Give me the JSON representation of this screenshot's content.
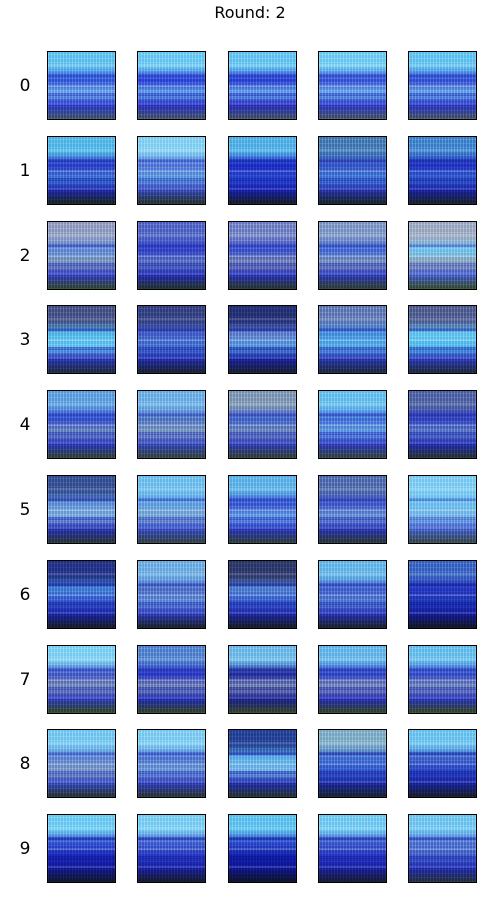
{
  "title": "Round: 2",
  "rows": [
    {
      "label": "0",
      "tiles": [
        {
          "top": "#6ec6ef",
          "mid": "#3a5fd8",
          "low": "#7fb9e6",
          "ground": "#4a5e6a",
          "accent": "#2e3fd0"
        },
        {
          "top": "#78cdf2",
          "mid": "#3348d4",
          "low": "#6fb2e6",
          "ground": "#4e5f6b",
          "accent": "#2b34c8"
        },
        {
          "top": "#72c9f0",
          "mid": "#2f45d0",
          "low": "#74b6e8",
          "ground": "#4c5d66",
          "accent": "#2a30c4"
        },
        {
          "top": "#7dd0f3",
          "mid": "#3f5ad4",
          "low": "#79bce8",
          "ground": "#50606a",
          "accent": "#2f3ccc"
        },
        {
          "top": "#70c8ef",
          "mid": "#3c56d2",
          "low": "#78b8e6",
          "ground": "#4f5f69",
          "accent": "#2c3aca"
        }
      ]
    },
    {
      "label": "1",
      "tiles": [
        {
          "top": "#5fbde8",
          "mid": "#2f42c8",
          "low": "#4a86d6",
          "ground": "#1e2a22",
          "accent": "#1f2cb0"
        },
        {
          "top": "#8fd4f2",
          "mid": "#5d7fd8",
          "low": "#6aa7e0",
          "ground": "#2c3a30",
          "accent": "#3b50c0"
        },
        {
          "top": "#5cb6e6",
          "mid": "#1f2ec4",
          "low": "#2f52cc",
          "ground": "#1a2226",
          "accent": "#1622b0"
        },
        {
          "top": "#4e86b8",
          "mid": "#3c5cc8",
          "low": "#4a8ad8",
          "ground": "#1d2a2a",
          "accent": "#2a36b4"
        },
        {
          "top": "#4a8fcf",
          "mid": "#2436c0",
          "low": "#3a6cd0",
          "ground": "#1c2628",
          "accent": "#1a24a8"
        }
      ]
    },
    {
      "label": "2",
      "tiles": [
        {
          "top": "#9aa6c4",
          "mid": "#6a94d8",
          "low": "#8aa0b8",
          "ground": "#3a4e30",
          "accent": "#3444c4"
        },
        {
          "top": "#5b70c6",
          "mid": "#3848c8",
          "low": "#6a86c0",
          "ground": "#283a2c",
          "accent": "#2630b8"
        },
        {
          "top": "#7e8cc6",
          "mid": "#4058cc",
          "low": "#8a96b4",
          "ground": "#2e3c2c",
          "accent": "#2c38bc"
        },
        {
          "top": "#8aa0c8",
          "mid": "#4a72d4",
          "low": "#8da2ba",
          "ground": "#34462e",
          "accent": "#3040c0"
        },
        {
          "top": "#a6b2c4",
          "mid": "#7ac8ef",
          "low": "#9aa8b6",
          "ground": "#3e5430",
          "accent": "#4a66d0"
        }
      ]
    },
    {
      "label": "3",
      "tiles": [
        {
          "top": "#4e5c8a",
          "mid": "#5dbfe8",
          "low": "#6ec8ee",
          "ground": "#243040",
          "accent": "#2c3cb8"
        },
        {
          "top": "#3c4a86",
          "mid": "#4a68c8",
          "low": "#4c7fd0",
          "ground": "#1e2630",
          "accent": "#2430b0"
        },
        {
          "top": "#2a3678",
          "mid": "#6a8ad0",
          "low": "#5ea2dc",
          "ground": "#1c2430",
          "accent": "#1a24a4"
        },
        {
          "top": "#6e86b8",
          "mid": "#4d9ae0",
          "low": "#62b4e6",
          "ground": "#223040",
          "accent": "#2b3ab4"
        },
        {
          "top": "#5a6894",
          "mid": "#6ccbf0",
          "low": "#5dbde8",
          "ground": "#23303c",
          "accent": "#2e3fbc"
        }
      ]
    },
    {
      "label": "4",
      "tiles": [
        {
          "top": "#6aa8e0",
          "mid": "#3a56cc",
          "low": "#7a98c0",
          "ground": "#3a4a3a",
          "accent": "#2c3cc0"
        },
        {
          "top": "#7ab6e6",
          "mid": "#5c80c4",
          "low": "#8aa4c2",
          "ground": "#3c4c40",
          "accent": "#3a4cc0"
        },
        {
          "top": "#8aa0b8",
          "mid": "#4a6ccc",
          "low": "#7c96bc",
          "ground": "#384838",
          "accent": "#3242bc"
        },
        {
          "top": "#74c4ee",
          "mid": "#4a7ad8",
          "low": "#6fa8e0",
          "ground": "#3a4c44",
          "accent": "#3040c4"
        },
        {
          "top": "#5a6ea8",
          "mid": "#3648c0",
          "low": "#6a8ac8",
          "ground": "#2c3a34",
          "accent": "#2430b4"
        }
      ]
    },
    {
      "label": "5",
      "tiles": [
        {
          "top": "#3e5a96",
          "mid": "#6a9ad8",
          "low": "#8ab4dc",
          "ground": "#2e3c3c",
          "accent": "#2a36b4"
        },
        {
          "top": "#7cc4ee",
          "mid": "#6aa6e0",
          "low": "#8ab0d4",
          "ground": "#3a4a48",
          "accent": "#3a52c8"
        },
        {
          "top": "#6ab8e8",
          "mid": "#3e5ed0",
          "low": "#74aee4",
          "ground": "#34443e",
          "accent": "#2c3cc4"
        },
        {
          "top": "#5c78b0",
          "mid": "#4860c8",
          "low": "#7aa4d8",
          "ground": "#303e3a",
          "accent": "#2c3ab8"
        },
        {
          "top": "#8ad0f2",
          "mid": "#78c4ee",
          "low": "#86bce6",
          "ground": "#40504e",
          "accent": "#4a6ad0"
        }
      ]
    },
    {
      "label": "6",
      "tiles": [
        {
          "top": "#2a3a8a",
          "mid": "#4a8ad8",
          "low": "#3a5ccc",
          "ground": "#1a2026",
          "accent": "#1a26a8"
        },
        {
          "top": "#7ab4e4",
          "mid": "#5a78c8",
          "low": "#6a98d8",
          "ground": "#1e2628",
          "accent": "#3040bc"
        },
        {
          "top": "#34406e",
          "mid": "#5a8ad4",
          "low": "#3c64cc",
          "ground": "#1a2024",
          "accent": "#1e2aa8"
        },
        {
          "top": "#72bce8",
          "mid": "#4a68cc",
          "low": "#5c8ad4",
          "ground": "#1e262a",
          "accent": "#2a36b8"
        },
        {
          "top": "#4470c4",
          "mid": "#2a3cc0",
          "low": "#2440b8",
          "ground": "#141a22",
          "accent": "#141c9c"
        }
      ]
    },
    {
      "label": "7",
      "tiles": [
        {
          "top": "#8ad4f2",
          "mid": "#4a62c8",
          "low": "#8a9cb8",
          "ground": "#3a5026",
          "accent": "#3040c0"
        },
        {
          "top": "#5e8ed0",
          "mid": "#2c3cc4",
          "low": "#8a9ab4",
          "ground": "#3a4c28",
          "accent": "#2230b8"
        },
        {
          "top": "#7ac0e8",
          "mid": "#24309e",
          "low": "#8898b6",
          "ground": "#3c4e2a",
          "accent": "#1c2294"
        },
        {
          "top": "#72bce8",
          "mid": "#3448c4",
          "low": "#8e9eb8",
          "ground": "#3a4e28",
          "accent": "#2630b8"
        },
        {
          "top": "#74c4ec",
          "mid": "#3a52c8",
          "low": "#889cba",
          "ground": "#3e5028",
          "accent": "#2a38bc"
        }
      ]
    },
    {
      "label": "8",
      "tiles": [
        {
          "top": "#82ccf0",
          "mid": "#6a8ed4",
          "low": "#8aa4c4",
          "ground": "#2e3a36",
          "accent": "#3a52c4"
        },
        {
          "top": "#8ad0f2",
          "mid": "#5a80d0",
          "low": "#7aa6d8",
          "ground": "#303c38",
          "accent": "#3444c0"
        },
        {
          "top": "#2a4a98",
          "mid": "#6ab6e8",
          "low": "#7fbce6",
          "ground": "#2c3834",
          "accent": "#2232b0"
        },
        {
          "top": "#8ab4c8",
          "mid": "#4a7ad4",
          "low": "#3a62cc",
          "ground": "#1e2a2e",
          "accent": "#1e2ca8"
        },
        {
          "top": "#78c8ee",
          "mid": "#4a6ecc",
          "low": "#2e4cc4",
          "ground": "#1a2228",
          "accent": "#1a26a4"
        }
      ]
    },
    {
      "label": "9",
      "tiles": [
        {
          "top": "#7ad0f2",
          "mid": "#3a5ad0",
          "low": "#1a2ab8",
          "ground": "#141a2a",
          "accent": "#141c9c"
        },
        {
          "top": "#86d2f2",
          "mid": "#4a6ad0",
          "low": "#2a3cc0",
          "ground": "#181e2c",
          "accent": "#1a24a8"
        },
        {
          "top": "#6ac6ee",
          "mid": "#3452cc",
          "low": "#1222a8",
          "ground": "#10162a",
          "accent": "#101898"
        },
        {
          "top": "#80cef2",
          "mid": "#4662cc",
          "low": "#2a3ac0",
          "ground": "#1a2030",
          "accent": "#1a24a8"
        },
        {
          "top": "#7ccaf0",
          "mid": "#5a7ed0",
          "low": "#4a68c8",
          "ground": "#2a3640",
          "accent": "#2230b4"
        }
      ]
    }
  ]
}
